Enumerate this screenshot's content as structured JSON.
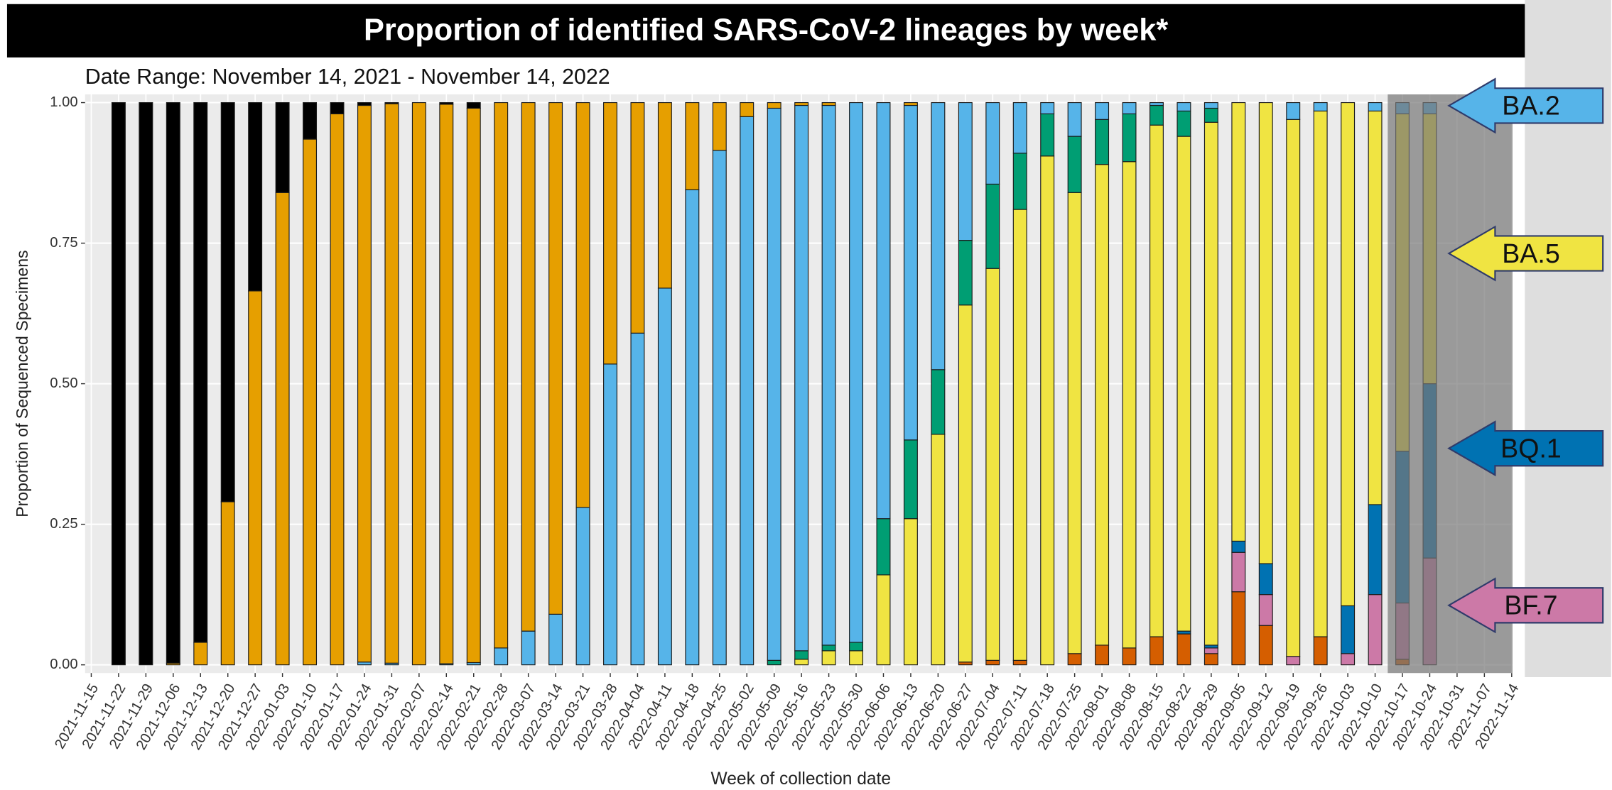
{
  "chart_data": {
    "type": "stacked_bar",
    "title": "Proportion of identified SARS-CoV-2 lineages by week*",
    "subtitle": "Date Range: November 14, 2021 - November 14, 2022",
    "x_label": "Week of collection date",
    "y_label": "Proportion of Sequenced Specimens",
    "categories": [
      "2021-11-15",
      "2021-11-22",
      "2021-11-29",
      "2021-12-06",
      "2021-12-13",
      "2021-12-20",
      "2021-12-27",
      "2022-01-03",
      "2022-01-10",
      "2022-01-17",
      "2022-01-24",
      "2022-01-31",
      "2022-02-07",
      "2022-02-14",
      "2022-02-21",
      "2022-02-28",
      "2022-03-07",
      "2022-03-14",
      "2022-03-21",
      "2022-03-28",
      "2022-04-04",
      "2022-04-11",
      "2022-04-18",
      "2022-04-25",
      "2022-05-02",
      "2022-05-09",
      "2022-05-16",
      "2022-05-23",
      "2022-05-30",
      "2022-06-06",
      "2022-06-13",
      "2022-06-20",
      "2022-06-27",
      "2022-07-04",
      "2022-07-11",
      "2022-07-18",
      "2022-07-25",
      "2022-08-01",
      "2022-08-08",
      "2022-08-15",
      "2022-08-22",
      "2022-08-29",
      "2022-09-05",
      "2022-09-12",
      "2022-09-19",
      "2022-09-26",
      "2022-10-03",
      "2022-10-10",
      "2022-10-17",
      "2022-10-24",
      "2022-10-31",
      "2022-11-07",
      "2022-11-14"
    ],
    "series": [
      {
        "color": "#d55e00",
        "values": [
          null,
          0,
          0,
          0,
          0,
          0,
          0,
          0,
          0,
          0,
          0,
          0,
          0,
          0,
          0,
          0,
          0,
          0,
          0,
          0,
          0,
          0,
          0,
          0,
          0,
          0,
          0,
          0,
          0,
          0,
          0,
          0,
          0.005,
          0.008,
          0.008,
          0,
          0.02,
          0.035,
          0.03,
          0.05,
          0.055,
          0.02,
          0.13,
          0.07,
          0,
          0.05,
          0,
          0,
          0.01,
          0,
          null,
          null,
          null
        ]
      },
      {
        "name": "BF.7",
        "color": "#cc79a7",
        "values": [
          null,
          0,
          0,
          0,
          0,
          0,
          0,
          0,
          0,
          0,
          0,
          0,
          0,
          0,
          0,
          0,
          0,
          0,
          0,
          0,
          0,
          0,
          0,
          0,
          0,
          0,
          0,
          0,
          0,
          0,
          0,
          0,
          0,
          0,
          0,
          0,
          0,
          0,
          0,
          0,
          0,
          0.01,
          0.07,
          0.055,
          0.015,
          0,
          0.02,
          0.125,
          0.1,
          0.19,
          null,
          null,
          null
        ]
      },
      {
        "name": "BQ.1",
        "color": "#0072b2",
        "values": [
          null,
          0,
          0,
          0,
          0,
          0,
          0,
          0,
          0,
          0,
          0,
          0,
          0,
          0,
          0,
          0,
          0,
          0,
          0,
          0,
          0,
          0,
          0,
          0,
          0,
          0,
          0,
          0,
          0,
          0,
          0,
          0,
          0,
          0,
          0,
          0,
          0,
          0,
          0,
          0,
          0.005,
          0.005,
          0.02,
          0.055,
          0,
          0,
          0.085,
          0.16,
          0.27,
          0.31,
          null,
          null,
          null
        ]
      },
      {
        "name": "BA.5",
        "color": "#f0e442",
        "values": [
          null,
          0,
          0,
          0,
          0,
          0,
          0,
          0,
          0,
          0,
          0,
          0,
          0,
          0,
          0,
          0,
          0,
          0,
          0,
          0,
          0,
          0,
          0,
          0,
          0,
          0,
          0.01,
          0.025,
          0.025,
          0.16,
          0.26,
          0.41,
          0.635,
          0.697,
          0.802,
          0.905,
          0.82,
          0.855,
          0.865,
          0.91,
          0.88,
          0.93,
          0.78,
          0.82,
          0.955,
          0.935,
          0.895,
          0.7,
          0.6,
          0.48,
          null,
          null,
          null
        ]
      },
      {
        "color": "#009e73",
        "values": [
          null,
          0,
          0,
          0,
          0,
          0,
          0,
          0,
          0,
          0,
          0,
          0,
          0,
          0,
          0,
          0,
          0,
          0,
          0,
          0,
          0,
          0,
          0,
          0,
          0,
          0.008,
          0.015,
          0.01,
          0.015,
          0.1,
          0.14,
          0.115,
          0.115,
          0.15,
          0.1,
          0.075,
          0.1,
          0.08,
          0.085,
          0.035,
          0.045,
          0.025,
          0,
          0,
          0,
          0,
          0,
          0,
          0,
          0,
          null,
          null,
          null
        ]
      },
      {
        "name": "BA.2",
        "color": "#56b4e9",
        "values": [
          null,
          0,
          0,
          0,
          0,
          0,
          0,
          0,
          0,
          0,
          0.005,
          0.003,
          0,
          0.002,
          0.004,
          0.03,
          0.06,
          0.09,
          0.28,
          0.535,
          0.59,
          0.67,
          0.845,
          0.915,
          0.975,
          0.982,
          0.97,
          0.96,
          0.96,
          0.74,
          0.595,
          0.475,
          0.245,
          0.145,
          0.09,
          0.02,
          0.06,
          0.03,
          0.02,
          0.005,
          0.015,
          0.01,
          0,
          0,
          0.03,
          0.015,
          0,
          0.015,
          0.02,
          0.02,
          null,
          null,
          null
        ]
      },
      {
        "color": "#e69f00",
        "values": [
          null,
          0,
          0,
          0.003,
          0.04,
          0.29,
          0.665,
          0.84,
          0.935,
          0.98,
          0.99,
          0.995,
          1,
          0.995,
          0.986,
          0.97,
          0.94,
          0.91,
          0.72,
          0.465,
          0.41,
          0.33,
          0.155,
          0.085,
          0.025,
          0.01,
          0.005,
          0.005,
          0,
          0,
          0.005,
          0,
          0,
          0,
          0,
          0,
          0,
          0,
          0,
          0,
          0,
          0,
          0,
          0,
          0,
          0,
          0,
          0,
          0,
          0,
          null,
          null,
          null
        ]
      },
      {
        "color": "#000000",
        "values": [
          null,
          1,
          1,
          0.997,
          0.96,
          0.71,
          0.335,
          0.16,
          0.065,
          0.02,
          0.005,
          0.002,
          0,
          0.003,
          0.01,
          0,
          0,
          0,
          0,
          0,
          0,
          0,
          0,
          0,
          0,
          0,
          0,
          0,
          0,
          0,
          0,
          0,
          0,
          0,
          0,
          0,
          0,
          0,
          0,
          0,
          0,
          0,
          0,
          0,
          0,
          0,
          0,
          0,
          0,
          0,
          null,
          null,
          null
        ]
      }
    ],
    "ylim": [
      0,
      1
    ],
    "yticks": [
      {
        "value": 0,
        "label": "0.00"
      },
      {
        "value": 0.25,
        "label": "0.25"
      },
      {
        "value": 0.5,
        "label": "0.50"
      },
      {
        "value": 0.75,
        "label": "0.75"
      },
      {
        "value": 1,
        "label": "1.00"
      }
    ],
    "grid": true
  }
}
